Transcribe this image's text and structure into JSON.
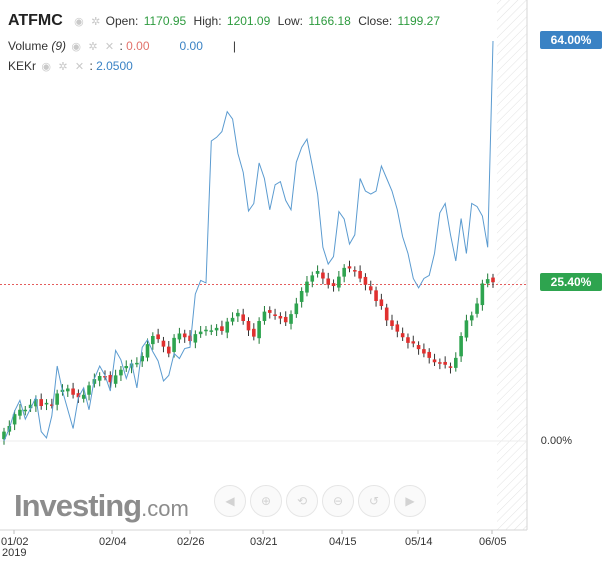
{
  "legend": {
    "ticker": "ATFMC",
    "open_label": "Open:",
    "open_value": "1170.95",
    "high_label": "High:",
    "high_value": "1201.09",
    "low_label": "Low:",
    "low_value": "1166.18",
    "close_label": "Close:",
    "close_value": "1199.27",
    "volume_label": "Volume",
    "volume_period": "(9)",
    "volume_value_1": "0.00",
    "volume_value_2": "0.00",
    "volume_marker": "|",
    "kekr_label": "KEKr",
    "kekr_value": "2.0500"
  },
  "price_tags": {
    "kekr": "64.00%",
    "price": "25.40%",
    "zero": "0.00%"
  },
  "logo": {
    "brand": "Investing",
    "tld": ".com"
  },
  "nav_buttons": [
    {
      "icon": "scroll-left-icon",
      "glyph": "◀"
    },
    {
      "icon": "zoom-in-icon",
      "glyph": "⊕"
    },
    {
      "icon": "reset-view-icon",
      "glyph": "⟲"
    },
    {
      "icon": "zoom-out-icon",
      "glyph": "⊖"
    },
    {
      "icon": "fit-view-icon",
      "glyph": "↺"
    },
    {
      "icon": "scroll-right-icon",
      "glyph": "▶"
    }
  ],
  "colors": {
    "up": "#2ea44f",
    "down": "#e0302f",
    "kekr_line": "#5b9bd0",
    "accent": "#3a82c4"
  },
  "chart_data": {
    "type": "line",
    "x_ticks": [
      "01/02",
      "02/04",
      "02/26",
      "03/21",
      "04/15",
      "05/14",
      "06/05"
    ],
    "x_year_label": "2019",
    "y_right_ticks": [
      "64.00%",
      "25.40%",
      "0.00%"
    ],
    "ylim": [
      0,
      64
    ],
    "grid": false,
    "series": [
      {
        "name": "ATFMC",
        "kind": "candlestick",
        "unit": "percent change",
        "values": [
          1.5,
          2.4,
          4.3,
          5.0,
          5.0,
          5.8,
          6.7,
          5.6,
          6.1,
          5.8,
          7.6,
          8.2,
          8.4,
          7.4,
          7.0,
          7.4,
          8.9,
          9.9,
          10.4,
          10.3,
          9.4,
          10.5,
          11.4,
          12.0,
          12.4,
          12.5,
          13.6,
          15.5,
          16.8,
          16.3,
          15.1,
          14.0,
          16.5,
          17.2,
          16.6,
          16.0,
          17.1,
          17.5,
          17.8,
          17.7,
          18.1,
          17.6,
          19.1,
          19.7,
          20.5,
          19.2,
          17.7,
          16.7,
          19.2,
          20.7,
          20.5,
          20.0,
          19.6,
          19.0,
          20.3,
          22.0,
          24.0,
          25.5,
          26.5,
          27.2,
          26.0,
          25.0,
          24.8,
          26.3,
          27.7,
          27.6,
          27.2,
          26.0,
          25.0,
          24.1,
          22.4,
          21.6,
          19.3,
          18.4,
          17.5,
          16.6,
          15.7,
          15.6,
          14.7,
          14.0,
          13.3,
          12.6,
          12.4,
          12.2,
          11.7,
          13.3,
          16.8,
          19.3,
          20.1,
          22.0,
          25.2,
          25.9,
          25.4
        ]
      },
      {
        "name": "KEKr",
        "kind": "line",
        "unit": "percent change",
        "values": [
          0.0,
          2.0,
          4.8,
          6.5,
          3.5,
          5.2,
          7.0,
          1.5,
          0.5,
          4.0,
          12.0,
          8.0,
          5.0,
          2.0,
          7.0,
          8.5,
          5.0,
          10.0,
          12.0,
          10.5,
          8.0,
          14.5,
          13.0,
          10.0,
          12.5,
          8.5,
          15.0,
          16.2,
          14.3,
          12.8,
          9.6,
          10.5,
          14.0,
          13.2,
          14.8,
          15.0,
          23.5,
          25.7,
          25.3,
          48.0,
          48.6,
          49.5,
          52.7,
          51.5,
          46.0,
          43.0,
          36.8,
          38.0,
          44.5,
          42.0,
          37.0,
          41.0,
          41.5,
          38.5,
          37.0,
          44.6,
          47.0,
          48.3,
          44.0,
          39.5,
          31.0,
          28.3,
          29.5,
          36.7,
          35.5,
          31.5,
          33.0,
          42.0,
          40.0,
          39.5,
          40.0,
          44.0,
          42.0,
          40.0,
          37.0,
          32.7,
          30.0,
          26.0,
          24.5,
          26.0,
          26.5,
          30.0,
          36.5,
          38.0,
          33.0,
          28.8,
          35.6,
          30.0,
          38.0,
          37.5,
          36.0,
          31.0,
          64.0
        ]
      }
    ]
  }
}
